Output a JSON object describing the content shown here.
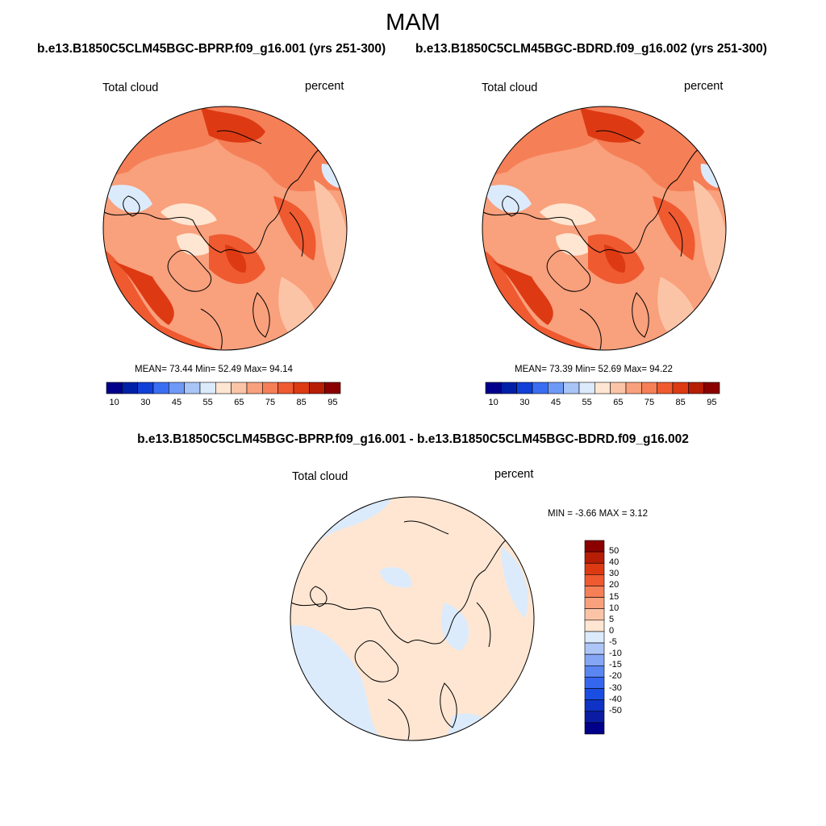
{
  "page": {
    "title": "MAM",
    "diff_title": "b.e13.B1850C5CLM45BGC-BPRP.f09_g16.001 - b.e13.B1850C5CLM45BGC-BDRD.f09_g16.002"
  },
  "panels": [
    {
      "case_title": "b.e13.B1850C5CLM45BGC-BPRP.f09_g16.001 (yrs 251-300)",
      "variable": "Total cloud",
      "units": "percent",
      "stats": "MEAN=  73.44  Min=  52.49  Max=  94.14"
    },
    {
      "case_title": "b.e13.B1850C5CLM45BGC-BDRD.f09_g16.002 (yrs 251-300)",
      "variable": "Total cloud",
      "units": "percent",
      "stats": "MEAN=  73.39  Min=  52.69  Max=  94.22"
    },
    {
      "variable": "Total cloud",
      "units": "percent",
      "stats": "MIN =  -3.66 MAX =   3.12"
    }
  ],
  "colorbar_abs": {
    "colors": [
      "#00008b",
      "#0020a8",
      "#1140d8",
      "#3a6ef2",
      "#6f99f6",
      "#a9c4f7",
      "#dcebfb",
      "#ffe6d2",
      "#fcc4a6",
      "#f9a07c",
      "#f57f57",
      "#ef5a31",
      "#dd3a13",
      "#b71d05",
      "#8b0000"
    ],
    "ticks": [
      "10",
      "30",
      "45",
      "55",
      "65",
      "75",
      "85",
      "95"
    ]
  },
  "colorbar_diff": {
    "colors": [
      "#00008b",
      "#0b1ca4",
      "#0f33c4",
      "#1a4ee3",
      "#3566f0",
      "#5a86f2",
      "#84a6f4",
      "#aec6f7",
      "#dcebfb",
      "#ffe6d2",
      "#fcc4a6",
      "#f9a07c",
      "#f57f57",
      "#ef5a31",
      "#dd3a13",
      "#b71d05",
      "#8b0000"
    ],
    "ticks": [
      "50",
      "40",
      "30",
      "20",
      "15",
      "10",
      "5",
      "0",
      "-5",
      "-10",
      "-15",
      "-20",
      "-30",
      "-40",
      "-50"
    ]
  }
}
